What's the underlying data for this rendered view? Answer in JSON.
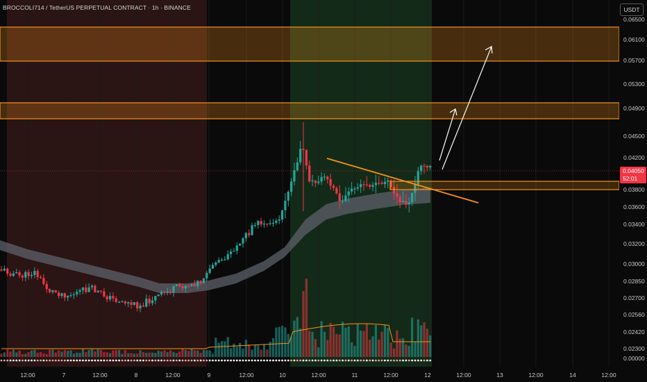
{
  "header": {
    "title": "BROCCOLI714 / TetherUS PERPETUAL CONTRACT · 1h · BINANCE",
    "currency": "USDT"
  },
  "price_tag": {
    "price": "0.04050",
    "countdown": "52:01"
  },
  "colors": {
    "up": "#26a69a",
    "down": "#f23645",
    "zone": "#f7931a",
    "ema_band": "#5d606b",
    "red_session": "#2a1414",
    "green_session": "#142a19",
    "background": "#0a0a0a"
  },
  "chart_data": {
    "type": "candlestick",
    "price_axis": [
      "0.06500",
      "0.06100",
      "0.05700",
      "0.05300",
      "0.04900",
      "0.04500",
      "0.04200",
      "0.03800",
      "0.03600",
      "0.03400",
      "0.03200",
      "0.03000",
      "0.02850",
      "0.02700",
      "0.02560",
      "0.02420",
      "0.02300",
      "0.00000"
    ],
    "time_axis": [
      "12:00",
      "7",
      "12:00",
      "8",
      "12:00",
      "9",
      "12:00",
      "10",
      "12:00",
      "11",
      "12:00",
      "12",
      "12:00",
      "13",
      "12:00",
      "14",
      "12:00"
    ],
    "last_price": 0.0405,
    "resistance_zones": [
      {
        "from": 0.057,
        "to": 0.063
      },
      {
        "from": 0.048,
        "to": 0.0502
      }
    ],
    "support_zone": {
      "from": 0.0382,
      "to": 0.039
    },
    "trendline": {
      "from": 0.0422,
      "to": 0.0372
    },
    "projection_arrows": 2,
    "ema_band": true,
    "volume": true,
    "sessions": [
      "red",
      "green"
    ]
  }
}
